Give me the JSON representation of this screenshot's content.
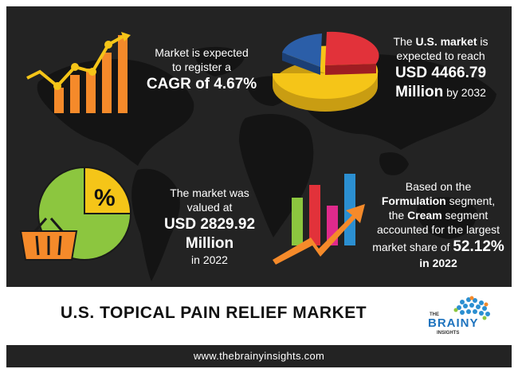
{
  "cagr": {
    "line1": "Market is expected",
    "line2": "to register a",
    "highlight": "CAGR of 4.67%"
  },
  "us_market": {
    "pre": "The ",
    "bold": "U.S. market",
    "post": " is",
    "line2": "expected to reach",
    "value1": "USD 4466.79",
    "value2": "Million",
    "year": " by 2032"
  },
  "valued": {
    "line1": "The market was",
    "line2": "valued at",
    "value1": "USD 2829.92",
    "value2": "Million",
    "year": "in 2022"
  },
  "segment": {
    "line1": "Based on the",
    "bold1": "Formulation",
    "line2_rest": " segment,",
    "line3_pre": "the ",
    "bold2": "Cream",
    "line3_rest": " segment",
    "line4": "accounted for the largest",
    "line5_pre": "market share of ",
    "share": "52.12%",
    "year": "in 2022"
  },
  "percent_symbol": "%",
  "title": "U.S. TOPICAL PAIN RELIEF MARKET",
  "logo": {
    "the": "THE",
    "brainy": "BRAINY",
    "insights": "INSIGHTS"
  },
  "url": "www.thebrainyinsights.com",
  "icons": {
    "growth": "bar-growth-chart-icon",
    "pie": "3d-pie-chart-icon",
    "percent": "percent-pie-basket-icon",
    "trend": "trend-bars-arrow-icon"
  },
  "colors": {
    "background": "#232323",
    "orange": "#f58a2a",
    "yellow": "#f5c518",
    "green": "#8cc63f",
    "red": "#e2323a",
    "blue": "#2b5ea8"
  }
}
